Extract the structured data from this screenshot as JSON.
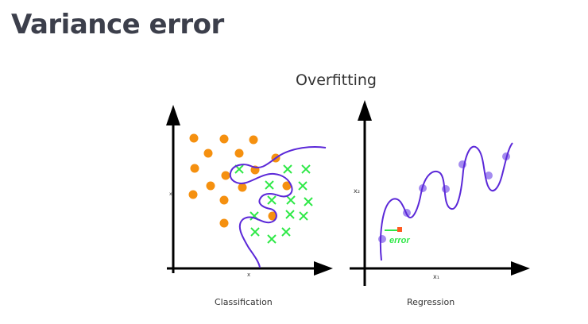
{
  "slide": {
    "title": "Variance error"
  },
  "figure": {
    "heading": "Overfitting",
    "colors": {
      "orange": "#f5900f",
      "green": "#2ee847",
      "purple": "#5b28d8",
      "lilac": "#a48bf0",
      "error_red": "#ff5a1f"
    },
    "classification": {
      "caption": "Classification",
      "x_axis_label": "x",
      "y_axis_label": "x",
      "class_a_marker": "dot",
      "class_b_marker": "cross"
    },
    "regression": {
      "caption": "Regression",
      "x_axis_label": "x₁",
      "y_axis_label": "x₂",
      "error_label": "error"
    }
  }
}
